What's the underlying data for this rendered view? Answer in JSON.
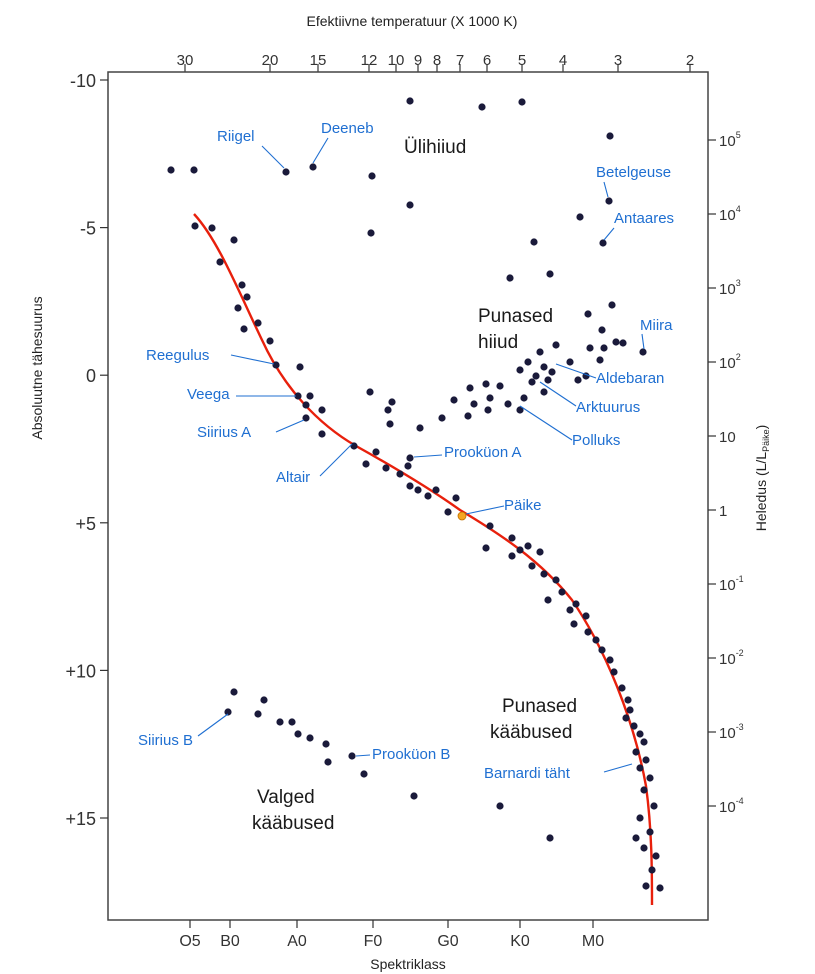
{
  "chart_data": {
    "type": "scatter",
    "title": "",
    "top_axis": {
      "label": "Efektiivne temperatuur (X 1000 K)",
      "ticks": [
        "30",
        "20",
        "15",
        "12",
        "10",
        "9",
        "8",
        "7",
        "6",
        "5",
        "4",
        "3",
        "2"
      ]
    },
    "bottom_axis": {
      "label": "Spektriklass",
      "ticks": [
        "O5",
        "B0",
        "A0",
        "F0",
        "G0",
        "K0",
        "M0"
      ]
    },
    "left_axis": {
      "label": "Absoluutne tähesuurus",
      "range": [
        -10,
        18.5
      ],
      "inverted": true,
      "ticks": [
        "-10",
        "-5",
        "0",
        "+5",
        "+10",
        "+15"
      ]
    },
    "right_axis": {
      "label": "Heledus (L/L",
      "label_sub": "Päike",
      "label_close": ")",
      "ticks": [
        {
          "base": "10",
          "exp": "5"
        },
        {
          "base": "10",
          "exp": "4"
        },
        {
          "base": "10",
          "exp": "3"
        },
        {
          "base": "10",
          "exp": "2"
        },
        {
          "base": "10",
          "exp": ""
        },
        {
          "base": "1",
          "exp": ""
        },
        {
          "base": "10",
          "exp": "-1"
        },
        {
          "base": "10",
          "exp": "-2"
        },
        {
          "base": "10",
          "exp": "-3"
        },
        {
          "base": "10",
          "exp": "-4"
        }
      ]
    },
    "region_labels": [
      {
        "lines": [
          "Ülihiiud"
        ]
      },
      {
        "lines": [
          "Punased",
          "hiiud"
        ]
      },
      {
        "lines": [
          "Punased",
          "kääbused"
        ]
      },
      {
        "lines": [
          "Valged",
          "kääbused"
        ]
      }
    ],
    "star_labels": [
      {
        "text": "Riigel"
      },
      {
        "text": "Deeneb"
      },
      {
        "text": "Betelgeuse"
      },
      {
        "text": "Antaares"
      },
      {
        "text": "Miira"
      },
      {
        "text": "Reegulus"
      },
      {
        "text": "Aldebaran"
      },
      {
        "text": "Veega"
      },
      {
        "text": "Arktuurus"
      },
      {
        "text": "Siirius A"
      },
      {
        "text": "Polluks"
      },
      {
        "text": "Prooküon A"
      },
      {
        "text": "Altair"
      },
      {
        "text": "Päike"
      },
      {
        "text": "Siirius B"
      },
      {
        "text": "Prooküon B"
      },
      {
        "text": "Barnardi täht"
      }
    ],
    "colors": {
      "star": "#1a1a3a",
      "main_sequence": "#e8200c",
      "sun": "#f5a623",
      "label": "#1f6fd1",
      "axis": "#333333"
    }
  }
}
